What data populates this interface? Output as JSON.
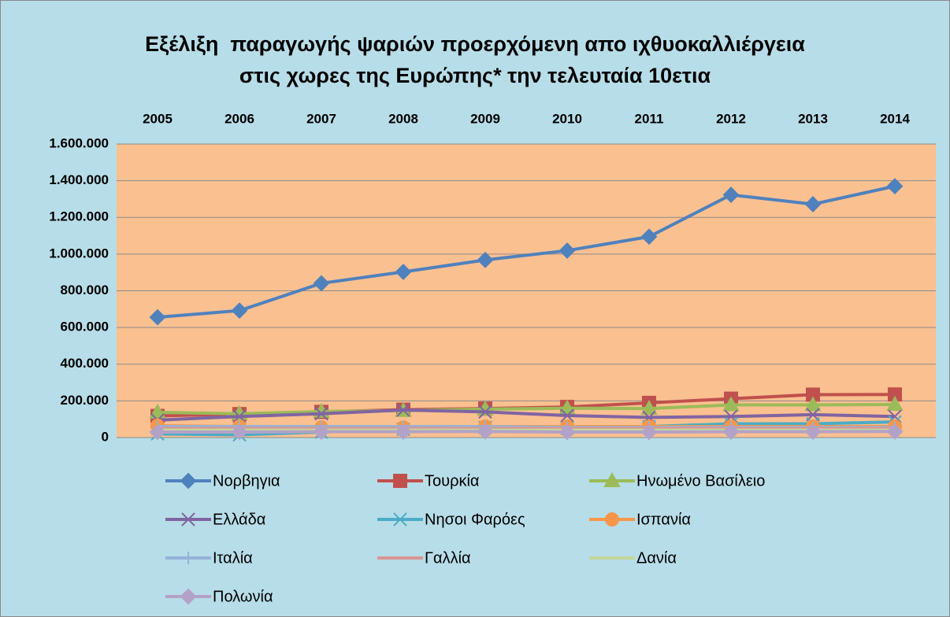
{
  "chart_data": {
    "type": "line",
    "title": [
      "Εξέλιξη  παραγωγής ψαριών προερχόμενη απο ιχθυοκαλλιέργεια",
      "στις χωρες της Ευρώπης* την τελευταία 10ετια"
    ],
    "categories": [
      "2005",
      "2006",
      "2007",
      "2008",
      "2009",
      "2010",
      "2011",
      "2012",
      "2013",
      "2014"
    ],
    "ylim": [
      0,
      1600000
    ],
    "yticks": [
      0,
      {
        "value": 200000,
        "label": "200.000"
      },
      {
        "value": 400000,
        "label": "400.000"
      },
      {
        "value": 600000,
        "label": "600.000"
      },
      {
        "value": 800000,
        "label": "800.000"
      },
      {
        "value": 1000000,
        "label": "1.000.000"
      },
      {
        "value": 1200000,
        "label": "1.200.000"
      },
      {
        "value": 1400000,
        "label": "1.400.000"
      },
      {
        "value": 1600000,
        "label": "1.600.000"
      }
    ],
    "grid": true,
    "series": [
      {
        "name": "Νορβηγια",
        "color": "#4f81bd",
        "marker": "diamond",
        "values": [
          656000,
          692000,
          841000,
          903000,
          968000,
          1019000,
          1095000,
          1323000,
          1272000,
          1370000
        ]
      },
      {
        "name": "Τουρκία",
        "color": "#c0504d",
        "marker": "square",
        "values": [
          118000,
          128000,
          140000,
          152000,
          158000,
          167000,
          189000,
          212000,
          234000,
          235000
        ]
      },
      {
        "name": "Ηνωμένο Βασίλειο",
        "color": "#9bbb59",
        "marker": "triangle",
        "values": [
          138000,
          130000,
          142000,
          147000,
          155000,
          160000,
          158000,
          178000,
          178000,
          180000
        ]
      },
      {
        "name": "Ελλάδα",
        "color": "#8064a2",
        "marker": "x",
        "values": [
          95000,
          115000,
          130000,
          150000,
          140000,
          120000,
          110000,
          115000,
          125000,
          115000
        ]
      },
      {
        "name": "Νησοι Φαρόες",
        "color": "#4bacc6",
        "marker": "star",
        "values": [
          20000,
          15000,
          30000,
          45000,
          55000,
          50000,
          60000,
          75000,
          75000,
          85000
        ]
      },
      {
        "name": "Ισπανία",
        "color": "#f79646",
        "marker": "circle",
        "values": [
          65000,
          60000,
          55000,
          55000,
          60000,
          60000,
          60000,
          60000,
          60000,
          60000
        ]
      },
      {
        "name": "Ιταλία",
        "color": "#95b3d7",
        "marker": "plus",
        "values": [
          60000,
          60000,
          60000,
          60000,
          60000,
          55000,
          55000,
          55000,
          55000,
          55000
        ]
      },
      {
        "name": "Γαλλία",
        "color": "#d99694",
        "marker": "none",
        "values": [
          50000,
          50000,
          50000,
          50000,
          50000,
          50000,
          50000,
          50000,
          50000,
          50000
        ]
      },
      {
        "name": "Δανία",
        "color": "#c3d69b",
        "marker": "none",
        "values": [
          40000,
          40000,
          40000,
          40000,
          40000,
          40000,
          40000,
          40000,
          40000,
          40000
        ]
      },
      {
        "name": "Πολωνία",
        "color": "#b3a2c7",
        "marker": "diamond",
        "values": [
          30000,
          30000,
          32000,
          32000,
          33000,
          30000,
          30000,
          32000,
          32000,
          33000
        ]
      }
    ]
  }
}
